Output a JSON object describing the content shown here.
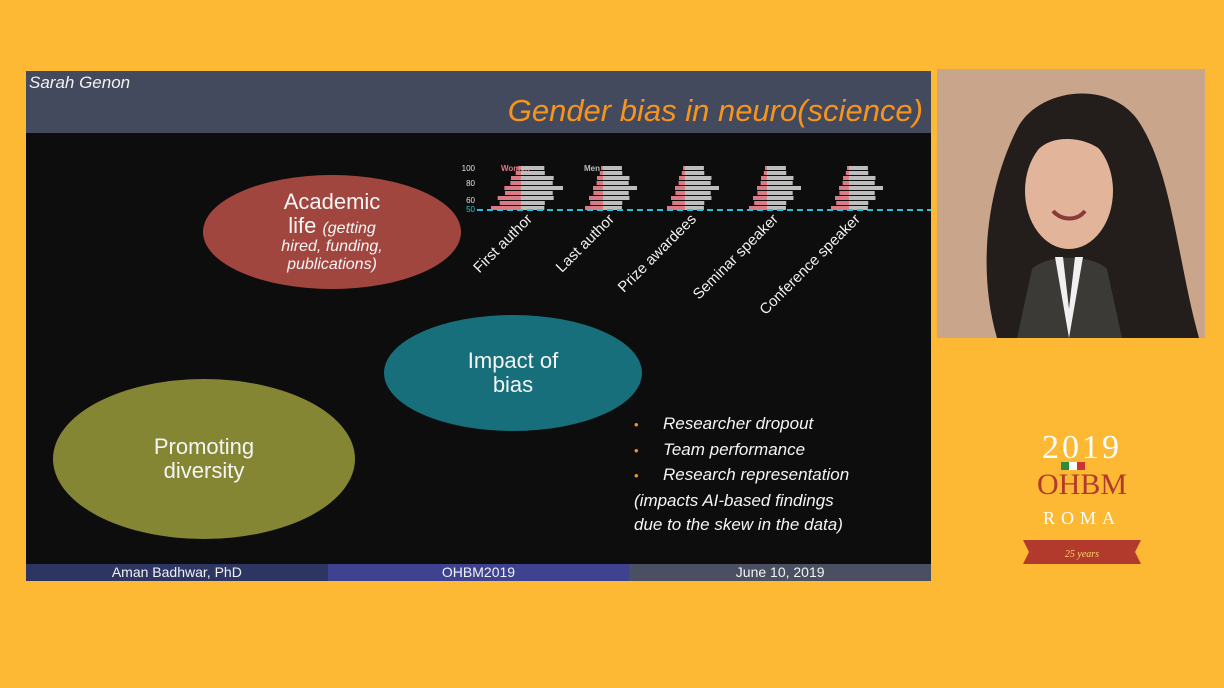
{
  "slide": {
    "presenter": "Sarah Genon",
    "title": "Gender bias in neuro(science)",
    "academic": {
      "line1": "Academic",
      "line2_word": "life",
      "line2_sub": "(getting",
      "line3": "hired, funding,",
      "line4": "publications)"
    },
    "impact": {
      "line1": "Impact of",
      "line2": "bias"
    },
    "promoting": {
      "line1": "Promoting",
      "line2": "diversity"
    },
    "bullets": [
      "Researcher dropout",
      "Team performance",
      "Research representation"
    ],
    "note": [
      "(impacts AI-based findings",
      "due to the skew in the data)"
    ],
    "footer": [
      "Aman Badhwar, PhD",
      "OHBM2019",
      "June 10, 2019"
    ]
  },
  "chart_data": {
    "type": "bar",
    "legend": [
      "Women",
      "Men"
    ],
    "yticks": [
      100,
      80,
      60,
      50
    ],
    "categories": [
      "First author",
      "Last author",
      "Prize awardees",
      "Seminar speaker",
      "Conference speaker"
    ],
    "colors": {
      "women": "#d97a86",
      "men": "#bdbdbd",
      "baseline": "#29c4d8"
    }
  },
  "logo": {
    "year": "2019",
    "org": "OHBM",
    "city": "ROMA",
    "ribbon": "25 years"
  }
}
